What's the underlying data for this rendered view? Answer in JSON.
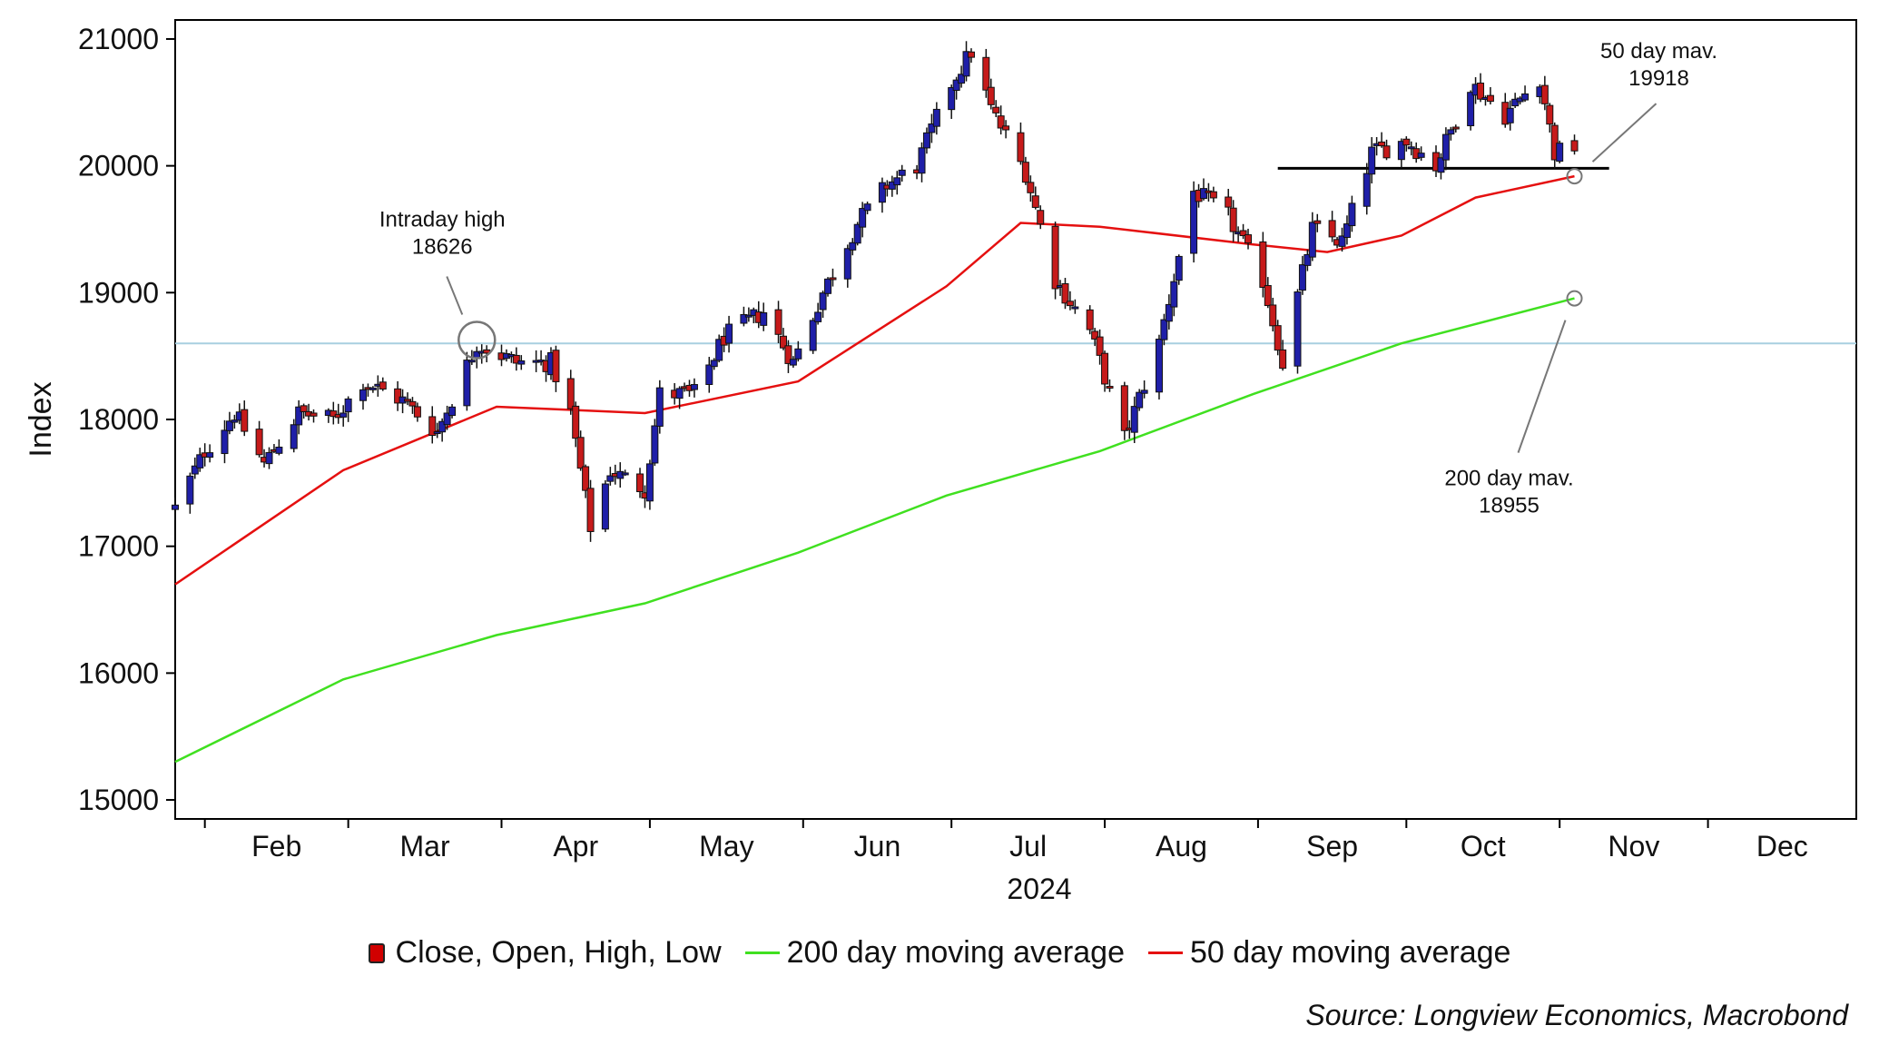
{
  "chart_data": {
    "type": "candlestick",
    "title": "",
    "xlabel": "2024",
    "ylabel": "Index",
    "ylim": [
      14850,
      21150
    ],
    "yticks": [
      15000,
      16000,
      17000,
      18000,
      19000,
      20000,
      21000
    ],
    "x_range": [
      "2024-01-26",
      "2024-12-31"
    ],
    "months": [
      "Feb",
      "Mar",
      "Apr",
      "May",
      "Jun",
      "Jul",
      "Aug",
      "Sep",
      "Oct",
      "Nov",
      "Dec"
    ],
    "series": [
      {
        "name": "Close, Open, High, Low",
        "color": "#d10000",
        "up_color": "#1f1fa8",
        "down_color": "#c61a1a",
        "anchors": [
          [
            "2024-01-26",
            17300
          ],
          [
            "2024-02-01",
            17750
          ],
          [
            "2024-02-07",
            18050
          ],
          [
            "2024-02-13",
            17650
          ],
          [
            "2024-02-20",
            18050
          ],
          [
            "2024-02-27",
            18000
          ],
          [
            "2024-03-04",
            18300
          ],
          [
            "2024-03-12",
            18150
          ],
          [
            "2024-03-19",
            17900
          ],
          [
            "2024-03-27",
            18600
          ],
          [
            "2024-04-04",
            18450
          ],
          [
            "2024-04-11",
            18450
          ],
          [
            "2024-04-15",
            18050
          ],
          [
            "2024-04-19",
            17150
          ],
          [
            "2024-04-23",
            17600
          ],
          [
            "2024-04-30",
            17450
          ],
          [
            "2024-05-03",
            18200
          ],
          [
            "2024-05-10",
            18200
          ],
          [
            "2024-05-16",
            18650
          ],
          [
            "2024-05-24",
            18850
          ],
          [
            "2024-05-30",
            18450
          ],
          [
            "2024-06-05",
            19000
          ],
          [
            "2024-06-12",
            19550
          ],
          [
            "2024-06-18",
            19850
          ],
          [
            "2024-06-24",
            20000
          ],
          [
            "2024-07-01",
            20650
          ],
          [
            "2024-07-05",
            20900
          ],
          [
            "2024-07-09",
            20450
          ],
          [
            "2024-07-16",
            19950
          ],
          [
            "2024-07-22",
            19100
          ],
          [
            "2024-07-29",
            18700
          ],
          [
            "2024-08-05",
            17850
          ],
          [
            "2024-08-12",
            18600
          ],
          [
            "2024-08-19",
            19800
          ],
          [
            "2024-08-26",
            19600
          ],
          [
            "2024-09-02",
            19100
          ],
          [
            "2024-09-06",
            18450
          ],
          [
            "2024-09-12",
            19500
          ],
          [
            "2024-09-18",
            19400
          ],
          [
            "2024-09-24",
            20100
          ],
          [
            "2024-10-01",
            20200
          ],
          [
            "2024-10-07",
            20000
          ],
          [
            "2024-10-14",
            20650
          ],
          [
            "2024-10-21",
            20400
          ],
          [
            "2024-10-28",
            20700
          ],
          [
            "2024-10-31",
            20100
          ],
          [
            "2024-11-04",
            20150
          ]
        ]
      },
      {
        "name": "200 day moving average",
        "color": "#40e020",
        "points": [
          [
            "2024-01-26",
            15300
          ],
          [
            "2024-02-29",
            15950
          ],
          [
            "2024-03-31",
            16300
          ],
          [
            "2024-04-30",
            16550
          ],
          [
            "2024-05-31",
            16950
          ],
          [
            "2024-06-30",
            17400
          ],
          [
            "2024-07-31",
            17750
          ],
          [
            "2024-08-31",
            18200
          ],
          [
            "2024-09-30",
            18600
          ],
          [
            "2024-11-04",
            18955
          ]
        ]
      },
      {
        "name": "50 day moving average",
        "color": "#e51010",
        "points": [
          [
            "2024-01-26",
            16700
          ],
          [
            "2024-02-29",
            17600
          ],
          [
            "2024-03-31",
            18100
          ],
          [
            "2024-04-30",
            18050
          ],
          [
            "2024-05-31",
            18300
          ],
          [
            "2024-06-30",
            19050
          ],
          [
            "2024-07-15",
            19550
          ],
          [
            "2024-07-31",
            19520
          ],
          [
            "2024-08-31",
            19380
          ],
          [
            "2024-09-15",
            19320
          ],
          [
            "2024-09-30",
            19450
          ],
          [
            "2024-10-15",
            19750
          ],
          [
            "2024-11-04",
            19918
          ]
        ]
      }
    ],
    "reference_lines": [
      {
        "type": "horizontal",
        "y": 18600,
        "color": "#a8cfe0"
      },
      {
        "type": "segment",
        "y": 19980,
        "x_from": "2024-09-05",
        "x_to": "2024-11-11",
        "color": "#000000"
      }
    ],
    "annotations": [
      {
        "text_lines": [
          "Intraday high",
          "18626"
        ],
        "point": [
          "2024-03-27",
          18626
        ]
      },
      {
        "text_lines": [
          "50 day mav.",
          "19918"
        ],
        "point": [
          "2024-11-04",
          19918
        ]
      },
      {
        "text_lines": [
          "200 day mav.",
          "18955"
        ],
        "point": [
          "2024-11-04",
          18955
        ]
      }
    ],
    "legend_position": "bottom",
    "grid": false
  },
  "legend": [
    {
      "label": "Close, Open, High, Low"
    },
    {
      "label": "200 day moving average",
      "color": "#40e020"
    },
    {
      "label": "50 day moving average",
      "color": "#e51010"
    }
  ],
  "source": "Source: Longview Economics, Macrobond"
}
